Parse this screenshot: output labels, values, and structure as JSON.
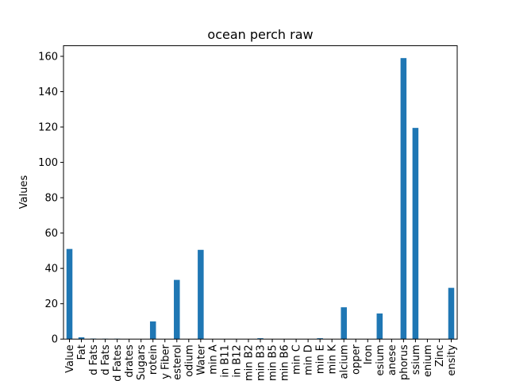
{
  "chart_data": {
    "type": "bar",
    "title": "ocean perch raw",
    "xlabel": "",
    "ylabel": "Values",
    "ylim": [
      0,
      166
    ],
    "yticks": [
      0,
      20,
      40,
      60,
      80,
      100,
      120,
      140,
      160
    ],
    "grid": false,
    "legend": "none",
    "bar_color": "#1f77b4",
    "categories": [
      "Value",
      "Fat",
      "d Fats",
      "d Fats",
      "d Fates",
      "drates",
      "Sugars",
      "rotein",
      "y Fiber",
      "esterol",
      "odium",
      "Water",
      "min A",
      "in B11",
      "in B12",
      "min B2",
      "min B3",
      "min B5",
      "min B6",
      "min C",
      "min D",
      "min E",
      "min K",
      "alcium",
      "opper",
      "Iron",
      "esium",
      "anese",
      "phorus",
      "ssium",
      "enium",
      "Zinc",
      "ensity"
    ],
    "values": [
      51,
      1,
      0.3,
      0.2,
      0.2,
      0,
      0,
      10,
      0,
      33.5,
      0,
      50.5,
      0,
      0,
      0,
      0,
      0.5,
      0,
      0,
      0,
      0,
      0.5,
      0,
      18,
      0,
      0,
      14.5,
      0,
      159,
      119.5,
      0,
      0,
      29
    ]
  }
}
